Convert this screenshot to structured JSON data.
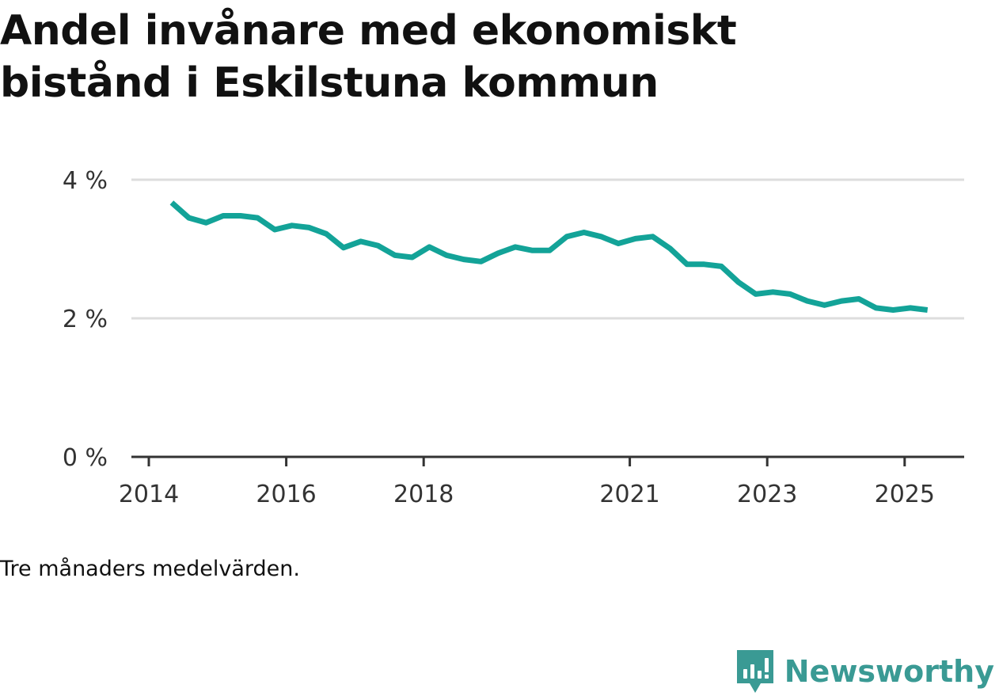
{
  "title": "Andel invånare med ekonomiskt bistånd i Eskilstuna kommun",
  "footnote": "Tre månaders medelvärden.",
  "brand": {
    "name": "Newsworthy",
    "logo_icon": "newsworthy-logo-icon",
    "color": "#3a9a94"
  },
  "chart_data": {
    "type": "line",
    "title": "Andel invånare med ekonomiskt bistånd i Eskilstuna kommun",
    "xlabel": "",
    "ylabel": "",
    "x_ticks": [
      "2014",
      "2016",
      "2018",
      "2021",
      "2023",
      "2025"
    ],
    "y_ticks": [
      "0 %",
      "2 %",
      "4 %"
    ],
    "ylim": [
      0,
      4
    ],
    "grid": true,
    "line_color": "#13a398",
    "series": [
      {
        "x": [
          "2014-05",
          "2014-08",
          "2014-11",
          "2015-02",
          "2015-05",
          "2015-08",
          "2015-11",
          "2016-02",
          "2016-05",
          "2016-08",
          "2016-11",
          "2017-02",
          "2017-05",
          "2017-08",
          "2017-11",
          "2018-02",
          "2018-05",
          "2018-08",
          "2018-11",
          "2019-02",
          "2019-05",
          "2019-08",
          "2019-11",
          "2020-02",
          "2020-05",
          "2020-08",
          "2020-11",
          "2021-02",
          "2021-05",
          "2021-08",
          "2021-11",
          "2022-02",
          "2022-05",
          "2022-08",
          "2022-11",
          "2023-02",
          "2023-05",
          "2023-08",
          "2023-11",
          "2024-02",
          "2024-05",
          "2024-08",
          "2024-11",
          "2025-02",
          "2025-05"
        ],
        "values": [
          3.67,
          3.45,
          3.38,
          3.48,
          3.48,
          3.45,
          3.28,
          3.34,
          3.31,
          3.22,
          3.02,
          3.11,
          3.05,
          2.91,
          2.88,
          3.03,
          2.91,
          2.85,
          2.82,
          2.94,
          3.03,
          2.98,
          2.98,
          3.18,
          3.24,
          3.18,
          3.08,
          3.15,
          3.18,
          3.01,
          2.78,
          2.78,
          2.75,
          2.52,
          2.35,
          2.38,
          2.35,
          2.25,
          2.19,
          2.25,
          2.28,
          2.15,
          2.12,
          2.15,
          2.12
        ]
      }
    ]
  }
}
